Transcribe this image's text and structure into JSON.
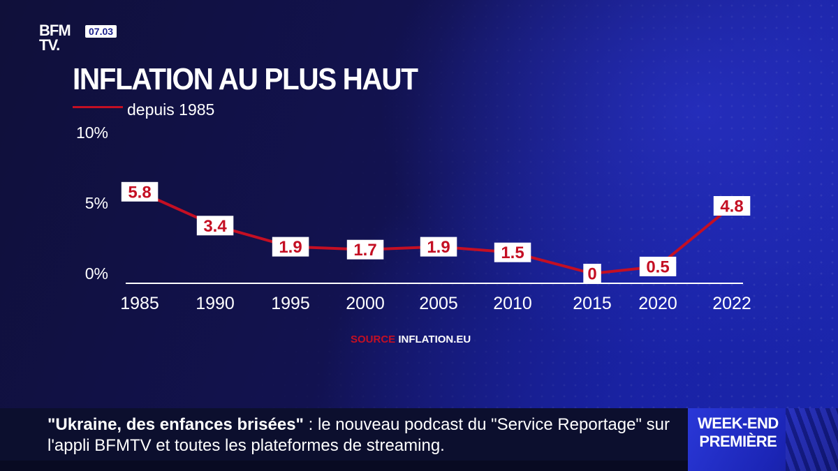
{
  "channel": {
    "logo_line1": "BFM",
    "logo_line2": "TV.",
    "time": "07.03"
  },
  "title": "INFLATION AU PLUS HAUT",
  "subtitle": "depuis 1985",
  "source": {
    "label": "SOURCE",
    "value": "INFLATION.EU"
  },
  "colors": {
    "accent_red": "#c40f23",
    "background_blue": "#1a22a0",
    "text": "#ffffff"
  },
  "chart_data": {
    "type": "line",
    "title": "INFLATION AU PLUS HAUT",
    "subtitle": "depuis 1985",
    "xlabel": "",
    "ylabel": "",
    "categories": [
      "1985",
      "1990",
      "1995",
      "2000",
      "2005",
      "2010",
      "2015",
      "2020",
      "2022"
    ],
    "values": [
      5.8,
      3.4,
      1.9,
      1.7,
      1.9,
      1.5,
      0,
      0.5,
      4.8
    ],
    "value_labels": [
      "5.8",
      "3.4",
      "1.9",
      "1.7",
      "1.9",
      "1.5",
      "0",
      "0.5",
      "4.8"
    ],
    "y_ticks": [
      "10%",
      "5%",
      "0%"
    ],
    "y_tick_values": [
      10,
      5,
      0
    ],
    "ylim": [
      0,
      10
    ],
    "grid": false,
    "line_color": "#c40f23"
  },
  "ticker": {
    "quote": "\"Ukraine, des enfances brisées\"",
    "text": " : le nouveau podcast du \"Service Reportage\" sur l'appli BFMTV et toutes les plateformes de streaming."
  },
  "program_badge": {
    "line1": "WEEK-END",
    "line2": "PREMIÈRE"
  }
}
